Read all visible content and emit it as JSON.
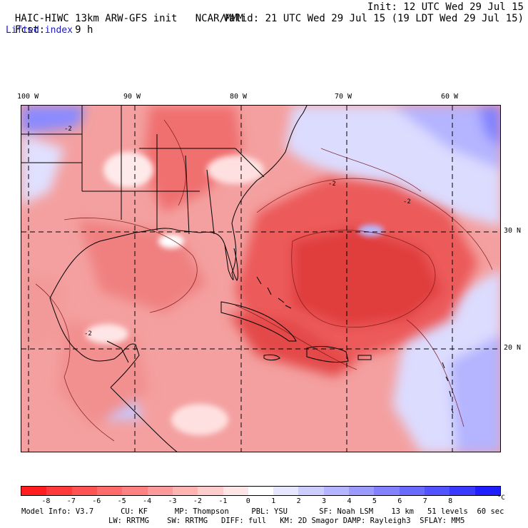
{
  "header": {
    "model": "HAIC-HIWC 13km ARW-GFS init",
    "org": "NCAR/MMM",
    "init": "Init: 12 UTC Wed 29 Jul 15",
    "fcst_label": "Fcst:",
    "fcst_value": "9 h",
    "valid": "Valid: 21 UTC Wed 29 Jul 15 (19 LDT Wed 29 Jul 15)",
    "field": "Lifted index"
  },
  "axes": {
    "lon_labels": [
      "100 W",
      "90 W",
      "80 W",
      "70 W",
      "60 W"
    ],
    "lat_labels": [
      "30 N",
      "20 N"
    ]
  },
  "colorbar": {
    "colors": [
      "#ff1e1e",
      "#ff3a3a",
      "#ff5252",
      "#ff6a6a",
      "#ff8282",
      "#ff9a9a",
      "#ffb4b4",
      "#ffcccc",
      "#ffe6e6",
      "#ffffff",
      "#e6e6ff",
      "#ccccff",
      "#b4b4ff",
      "#9a9aff",
      "#8282ff",
      "#6a6aff",
      "#5252ff",
      "#3a3aff",
      "#1e1eff"
    ],
    "labels": [
      "-8",
      "-7",
      "-6",
      "-5",
      "-4",
      "-3",
      "-2",
      "-1",
      "0",
      "1",
      "2",
      "3",
      "4",
      "5",
      "6",
      "7",
      "8"
    ],
    "unit": "°C"
  },
  "map": {
    "contour_label": "-2",
    "water_color": "#f2a4a4",
    "land_color": "#ffc8c8",
    "cold_color": "#7a8bff"
  },
  "model_info": {
    "line1": "Model Info: V3.7      CU: KF      MP: Thompson     PBL: YSU       SF: Noah LSM    13 km   51 levels  60 sec",
    "line2": "LW: RRTMG    SW: RRTMG   DIFF: full   KM: 2D Smagor DAMP: Rayleigh3  SFLAY: MM5"
  }
}
